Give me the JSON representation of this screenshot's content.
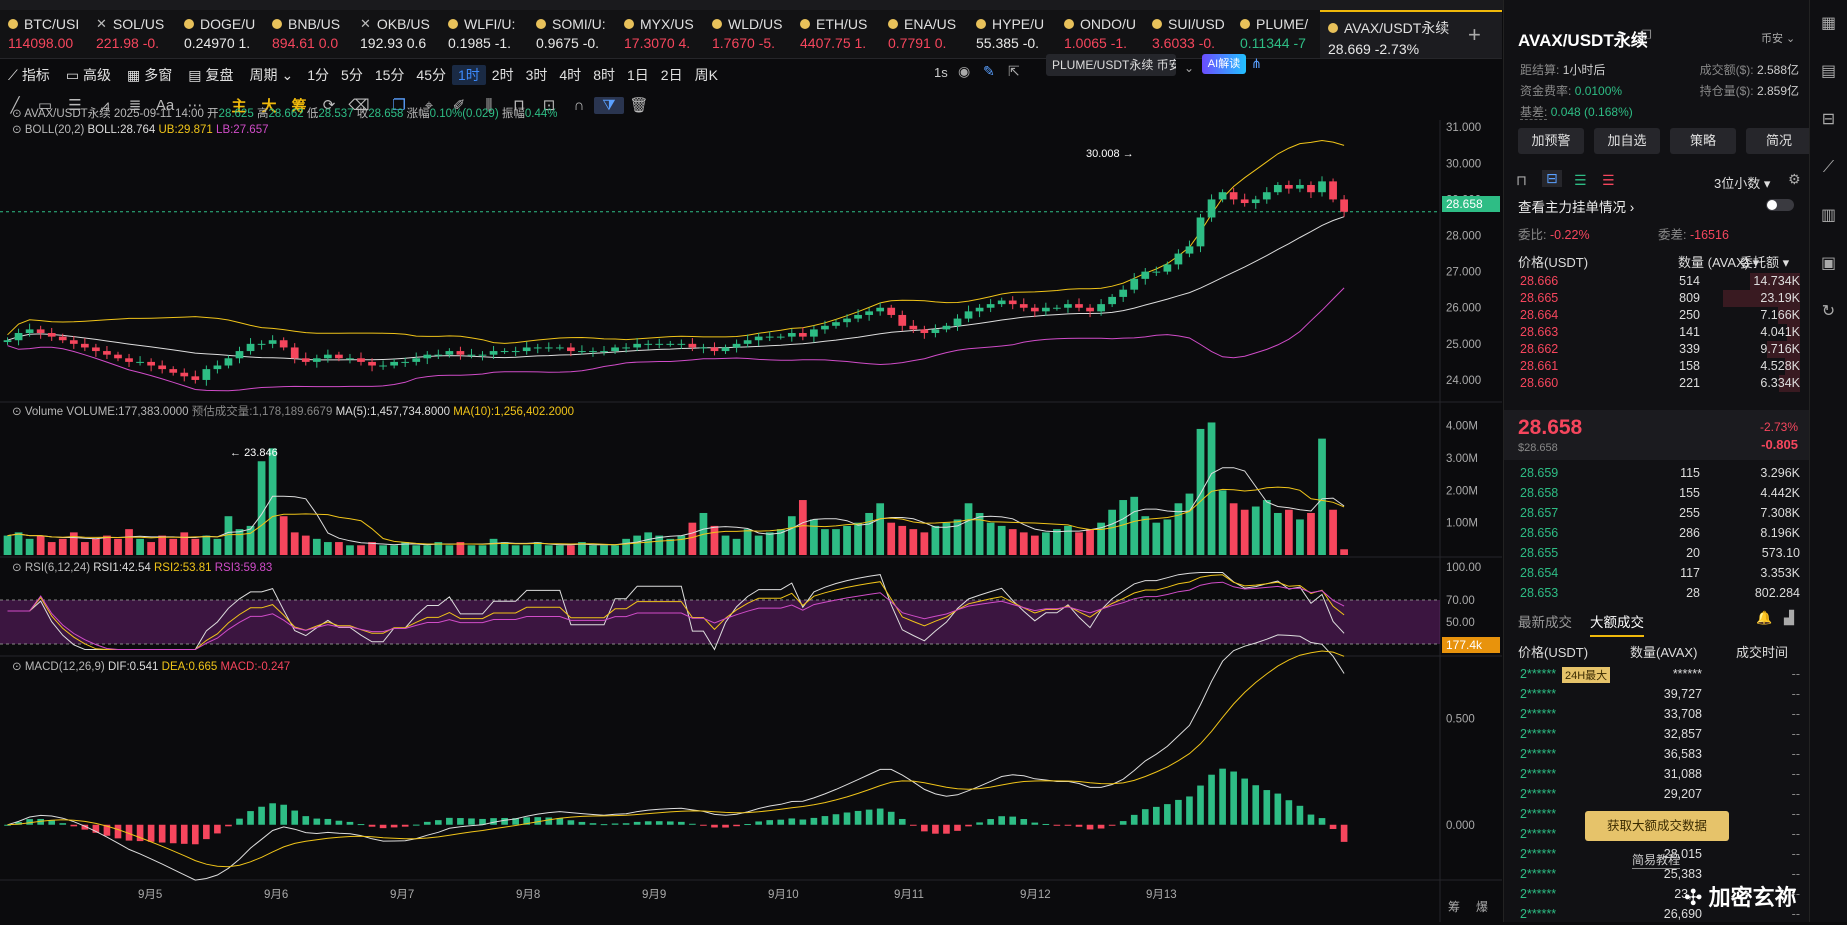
{
  "tabs": [
    {
      "name": "BTC/USI",
      "price": "114098.00",
      "change": "",
      "dir": "down",
      "icon": "star"
    },
    {
      "name": "SOL/US",
      "price": "221.98",
      "change": "-0.",
      "dir": "down",
      "icon": "x"
    },
    {
      "name": "DOGE/U",
      "price": "0.24970",
      "change": "1.",
      "dir": "wht",
      "icon": "star"
    },
    {
      "name": "BNB/US",
      "price": "894.61",
      "change": "0.0",
      "dir": "down",
      "icon": "star"
    },
    {
      "name": "OKB/US",
      "price": "192.93",
      "change": "0.6",
      "dir": "wht",
      "icon": "x"
    },
    {
      "name": "WLFI/U:",
      "price": "0.1985",
      "change": "-1.",
      "dir": "wht",
      "icon": "star"
    },
    {
      "name": "SOMI/U:",
      "price": "0.9675",
      "change": "-0.",
      "dir": "wht",
      "icon": "star"
    },
    {
      "name": "MYX/US",
      "price": "17.3070",
      "change": "4.",
      "dir": "down",
      "icon": "star"
    },
    {
      "name": "WLD/US",
      "price": "1.7670",
      "change": "-5.",
      "dir": "down",
      "icon": "star"
    },
    {
      "name": "ETH/US",
      "price": "4407.75",
      "change": "1.",
      "dir": "down",
      "icon": "star"
    },
    {
      "name": "ENA/US",
      "price": "0.7791",
      "change": "0.",
      "dir": "down",
      "icon": "star"
    },
    {
      "name": "HYPE/U",
      "price": "55.385",
      "change": "-0.",
      "dir": "wht",
      "icon": "star"
    },
    {
      "name": "ONDO/U",
      "price": "1.0065",
      "change": "-1.",
      "dir": "down",
      "icon": "star"
    },
    {
      "name": "SUI/USD",
      "price": "3.6033",
      "change": "-0.",
      "dir": "down",
      "icon": "star"
    },
    {
      "name": "PLUME/",
      "price": "0.11344",
      "change": "-7",
      "dir": "up",
      "icon": "star"
    }
  ],
  "active_tab": {
    "name": "AVAX/USDT永续",
    "price": "28.669",
    "change": "-2.73%"
  },
  "toolbar1": {
    "indicator": "指标",
    "advanced": "高级",
    "multi": "多窗",
    "replay": "复盘",
    "period": "周期",
    "intervals": [
      "1分",
      "5分",
      "15分",
      "45分",
      "1时",
      "2时",
      "3时",
      "4时",
      "8时",
      "1日",
      "2日",
      "周K"
    ],
    "selected_interval": "1时",
    "right_interval": "1s",
    "compare_symbol": "PLUME/USDT永续 币安",
    "ai_button": "AI解读"
  },
  "toolbar2": {
    "chips": [
      "主",
      "大",
      "筹"
    ]
  },
  "ohlc_line": {
    "symbol": "AVAX/USDT永续",
    "datetime": "2025-09-11 14:00",
    "open_label": "开",
    "open": "28.625",
    "high_label": "高",
    "high": "28.662",
    "low_label": "低",
    "low": "28.537",
    "close_label": "收",
    "close": "28.658",
    "chg_label": "涨幅",
    "chg": "0.10%(0.029)",
    "amp_label": "振幅",
    "amp": "0.44%"
  },
  "boll": {
    "label": "BOLL(20,2)",
    "boll": "BOLL:28.764",
    "ub": "UB:29.871",
    "lb": "LB:27.657"
  },
  "volume": {
    "label": "Volume",
    "vol": "VOLUME:177,383.0000",
    "est": "预估成交量:1,178,189.6679",
    "ma5": "MA(5):1,457,734.8000",
    "ma10": "MA(10):1,256,402.2000",
    "tag": "177.4k"
  },
  "rsi": {
    "label": "RSI(6,12,24)",
    "rsi1": "RSI1:42.54",
    "rsi2": "RSI2:53.81",
    "rsi3": "RSI3:59.83"
  },
  "macd": {
    "label": "MACD(12,26,9)",
    "dif": "DIF:0.541",
    "dea": "DEA:0.665",
    "macd": "MACD:-0.247"
  },
  "price_axis": [
    "31.000",
    "30.000",
    "29.000",
    "28.000",
    "27.000",
    "26.000",
    "25.000",
    "24.000"
  ],
  "vol_axis": [
    "4.00M",
    "3.00M",
    "2.00M",
    "1.00M"
  ],
  "rsi_axis": [
    "100.00",
    "70.00",
    "50.00",
    "30.00"
  ],
  "macd_axis": [
    "0.500",
    "0.000"
  ],
  "current_price_tag": "28.658",
  "high_marker": "30.008",
  "low_marker": "23.846",
  "date_axis": [
    "9月5",
    "9月6",
    "9月7",
    "9月8",
    "9月9",
    "9月10",
    "9月11",
    "9月12",
    "9月13"
  ],
  "corner_labels": [
    "筹",
    "爆"
  ],
  "chart_data": {
    "type": "candlestick",
    "interval": "1时",
    "x_labels": [
      "9月5",
      "9月6",
      "9月7",
      "9月8",
      "9月9",
      "9月10",
      "9月11",
      "9月12",
      "9月13"
    ],
    "ylim": [
      23.5,
      31.2
    ],
    "close": [
      25.1,
      25.3,
      25.4,
      25.3,
      25.2,
      25.1,
      25.0,
      24.9,
      24.8,
      24.7,
      24.6,
      24.5,
      24.5,
      24.4,
      24.3,
      24.2,
      24.1,
      24.0,
      24.3,
      24.4,
      24.6,
      24.8,
      25.0,
      25.0,
      25.1,
      24.9,
      24.6,
      24.5,
      24.6,
      24.7,
      24.6,
      24.6,
      24.5,
      24.4,
      24.4,
      24.5,
      24.5,
      24.6,
      24.7,
      24.7,
      24.8,
      24.7,
      24.7,
      24.7,
      24.8,
      24.8,
      24.8,
      24.9,
      24.9,
      24.9,
      24.9,
      24.8,
      24.8,
      24.8,
      24.8,
      24.9,
      24.9,
      25.0,
      25.0,
      25.0,
      25.0,
      25.0,
      24.9,
      24.9,
      24.8,
      24.9,
      25.0,
      25.1,
      25.2,
      25.2,
      25.2,
      25.3,
      25.2,
      25.4,
      25.5,
      25.6,
      25.7,
      25.8,
      25.9,
      26.0,
      25.8,
      25.5,
      25.4,
      25.3,
      25.4,
      25.5,
      25.7,
      25.9,
      26.0,
      26.1,
      26.2,
      26.1,
      26.0,
      25.9,
      26.0,
      26.0,
      26.1,
      26.0,
      25.9,
      26.1,
      26.3,
      26.5,
      26.8,
      27.0,
      27.0,
      27.2,
      27.5,
      27.7,
      28.5,
      29.0,
      29.2,
      29.0,
      28.9,
      29.0,
      29.2,
      29.4,
      29.3,
      29.4,
      29.2,
      29.5,
      29.0,
      28.658
    ],
    "volume_m": [
      0.6,
      0.7,
      0.5,
      0.6,
      0.4,
      0.5,
      0.7,
      0.4,
      0.5,
      0.6,
      0.5,
      0.8,
      0.5,
      0.4,
      0.6,
      0.5,
      0.7,
      0.5,
      0.6,
      0.5,
      1.2,
      0.8,
      0.9,
      2.9,
      3.3,
      1.2,
      0.7,
      0.6,
      0.5,
      0.4,
      0.4,
      0.3,
      0.3,
      0.4,
      0.3,
      0.3,
      0.4,
      0.3,
      0.3,
      0.4,
      0.3,
      0.4,
      0.3,
      0.3,
      0.5,
      0.4,
      0.3,
      0.3,
      0.4,
      0.3,
      0.3,
      0.3,
      0.4,
      0.3,
      0.3,
      0.3,
      0.5,
      0.6,
      0.7,
      0.6,
      0.5,
      0.6,
      1.0,
      1.3,
      0.9,
      0.6,
      0.5,
      0.8,
      0.6,
      0.7,
      0.8,
      1.2,
      1.7,
      1.1,
      0.8,
      0.8,
      0.9,
      1.0,
      1.3,
      1.6,
      1.0,
      0.9,
      0.8,
      0.7,
      0.9,
      1.0,
      1.1,
      1.6,
      1.3,
      1.0,
      0.9,
      0.8,
      0.7,
      0.6,
      0.7,
      0.8,
      0.9,
      0.7,
      0.8,
      1.0,
      1.4,
      1.7,
      1.8,
      1.2,
      1.0,
      1.1,
      1.6,
      1.9,
      3.9,
      4.1,
      2.0,
      1.6,
      1.4,
      1.5,
      1.7,
      1.3,
      1.4,
      1.1,
      1.3,
      3.6,
      1.4,
      0.177
    ]
  },
  "right": {
    "title": "AVAX/USDT永续",
    "exchange": "币安",
    "next_funding_label": "距结算:",
    "next_funding": "1小时后",
    "turnover_label": "成交额($):",
    "turnover": "2.588亿",
    "funding_rate_label": "资金费率:",
    "funding_rate": "0.0100%",
    "oi_label": "持仓量($):",
    "oi": "2.859亿",
    "basis_label": "基差:",
    "basis": "0.048 (0.168%)",
    "buttons": [
      "加预警",
      "加自选",
      "策略",
      "简况"
    ],
    "decimals": "3位小数",
    "main_orders": "查看主力挂单情况",
    "ratio_label": "委比:",
    "ratio": "-0.22%",
    "diff_label": "委差:",
    "diff": "-16516",
    "col_price": "价格(USDT)",
    "col_qty": "数量 (AVAX)",
    "col_total": "委托额",
    "asks": [
      {
        "p": "28.666",
        "q": "514",
        "t": "14.734K",
        "w": 0.45
      },
      {
        "p": "28.665",
        "q": "809",
        "t": "23.19K",
        "w": 0.7
      },
      {
        "p": "28.664",
        "q": "250",
        "t": "7.166K",
        "w": 0.2
      },
      {
        "p": "28.663",
        "q": "141",
        "t": "4.041K",
        "w": 0.12
      },
      {
        "p": "28.662",
        "q": "339",
        "t": "9.716K",
        "w": 0.3
      },
      {
        "p": "28.661",
        "q": "158",
        "t": "4.528K",
        "w": 0.14
      },
      {
        "p": "28.660",
        "q": "221",
        "t": "6.334K",
        "w": 0.19
      }
    ],
    "last_price": "28.658",
    "last_usd": "$28.658",
    "last_pct": "-2.73%",
    "last_chg": "-0.805",
    "bids": [
      {
        "p": "28.659",
        "q": "115",
        "t": "3.296K"
      },
      {
        "p": "28.658",
        "q": "155",
        "t": "4.442K"
      },
      {
        "p": "28.657",
        "q": "255",
        "t": "7.308K"
      },
      {
        "p": "28.656",
        "q": "286",
        "t": "8.196K"
      },
      {
        "p": "28.655",
        "q": "20",
        "t": "573.10"
      },
      {
        "p": "28.654",
        "q": "117",
        "t": "3.353K"
      },
      {
        "p": "28.653",
        "q": "28",
        "t": "802.284"
      }
    ],
    "trade_tabs": [
      "最新成交",
      "大额成交"
    ],
    "trade_cols": [
      "价格(USDT)",
      "数量(AVAX)",
      "成交时间"
    ],
    "big_trades": [
      {
        "p": "2******",
        "q": "******",
        "t": "--",
        "badge": "24H最大"
      },
      {
        "p": "2******",
        "q": "39,727",
        "t": "--"
      },
      {
        "p": "2******",
        "q": "33,708",
        "t": "--"
      },
      {
        "p": "2******",
        "q": "32,857",
        "t": "--"
      },
      {
        "p": "2******",
        "q": "36,583",
        "t": "--"
      },
      {
        "p": "2******",
        "q": "31,088",
        "t": "--"
      },
      {
        "p": "2******",
        "q": "29,207",
        "t": "--"
      },
      {
        "p": "2******",
        "q": "",
        "t": "--"
      },
      {
        "p": "2******",
        "q": "",
        "t": "--"
      },
      {
        "p": "2******",
        "q": "28,015",
        "t": "--"
      },
      {
        "p": "2******",
        "q": "25,383",
        "t": "--"
      },
      {
        "p": "2******",
        "q": "23,...",
        "t": "--"
      },
      {
        "p": "2******",
        "q": "26,690",
        "t": "--"
      }
    ],
    "unlock_button": "获取大额成交数据",
    "tutorial": "简易教程",
    "watermark": "加密玄祢"
  }
}
